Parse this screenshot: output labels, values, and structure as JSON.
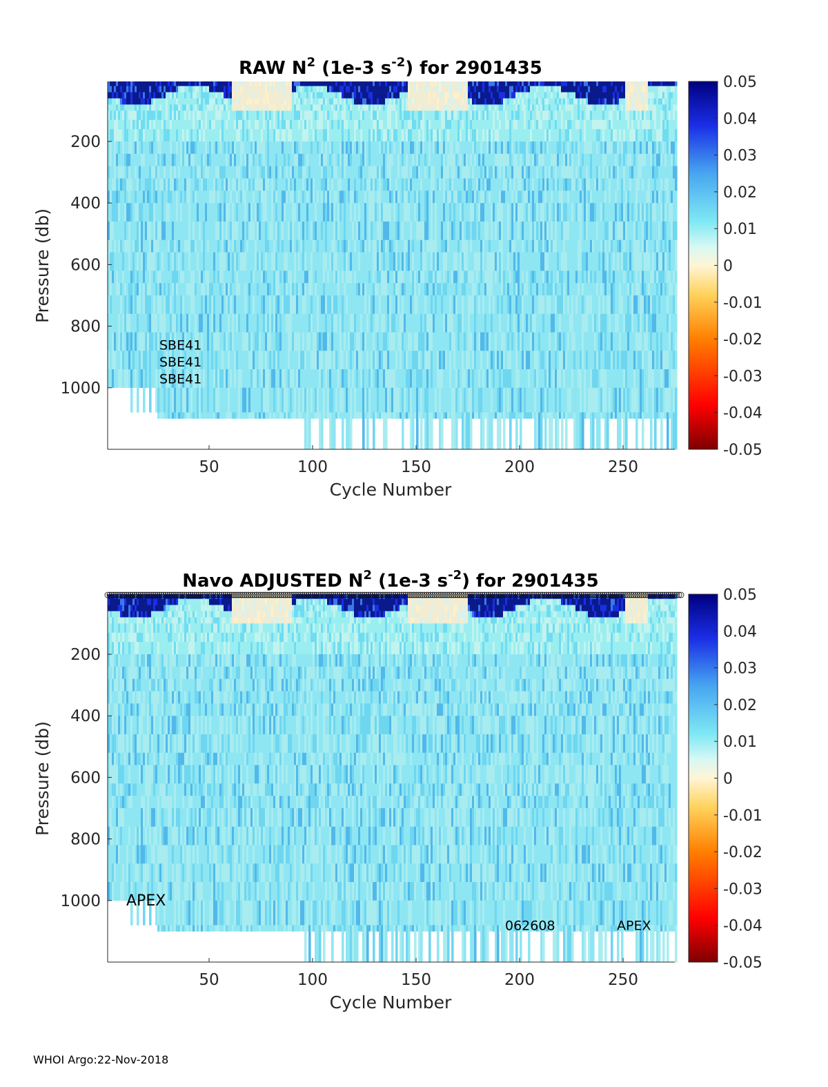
{
  "chart_data": [
    {
      "type": "heatmap",
      "title": {
        "prefix": "RAW N",
        "sup1": "2",
        "middle": " (1e-3 s",
        "sup2": "-2",
        "suffix": ") for 2901435"
      },
      "xlabel": "Cycle Number",
      "ylabel": "Pressure (db)",
      "xlim": [
        1,
        275
      ],
      "ylim": [
        1200,
        5
      ],
      "xticks": [
        "50",
        "100",
        "150",
        "200",
        "250"
      ],
      "xtick_values": [
        50,
        100,
        150,
        200,
        250
      ],
      "yticks": [
        "200",
        "400",
        "600",
        "800",
        "1000"
      ],
      "ytick_values": [
        200,
        400,
        600,
        800,
        1000
      ],
      "colorbar": {
        "range": [
          -0.05,
          0.05
        ],
        "ticks": [
          "0.05",
          "0.04",
          "0.03",
          "0.02",
          "0.01",
          "0",
          "-0.01",
          "-0.02",
          "-0.03",
          "-0.04",
          "-0.05"
        ]
      },
      "annotations": [
        {
          "text": "SBE41",
          "x": 26,
          "y": 860
        },
        {
          "text": "SBE41",
          "x": 26,
          "y": 915
        },
        {
          "text": "SBE41",
          "x": 26,
          "y": 970
        }
      ]
    },
    {
      "type": "heatmap",
      "title": {
        "prefix": "Navo  ADJUSTED N",
        "sup1": "2",
        "middle": " (1e-3 s",
        "sup2": "-2",
        "suffix": ") for 2901435"
      },
      "xlabel": "Cycle Number",
      "ylabel": "Pressure (db)",
      "xlim": [
        1,
        275
      ],
      "ylim": [
        1200,
        5
      ],
      "xticks": [
        "50",
        "100",
        "150",
        "200",
        "250"
      ],
      "xtick_values": [
        50,
        100,
        150,
        200,
        250
      ],
      "yticks": [
        "200",
        "400",
        "600",
        "800",
        "1000"
      ],
      "ytick_values": [
        200,
        400,
        600,
        800,
        1000
      ],
      "colorbar": {
        "range": [
          -0.05,
          0.05
        ],
        "ticks": [
          "0.05",
          "0.04",
          "0.03",
          "0.02",
          "0.01",
          "0",
          "-0.01",
          "-0.02",
          "-0.03",
          "-0.04",
          "-0.05"
        ]
      },
      "annotations": [
        {
          "text": "APEX",
          "x": 10,
          "y": 1000
        },
        {
          "text": "062608",
          "x": 193,
          "y": 1080
        },
        {
          "text": "APEX",
          "x": 247,
          "y": 1080
        }
      ],
      "surface_markers": true
    }
  ],
  "footer": "WHOI Argo:22-Nov-2018"
}
